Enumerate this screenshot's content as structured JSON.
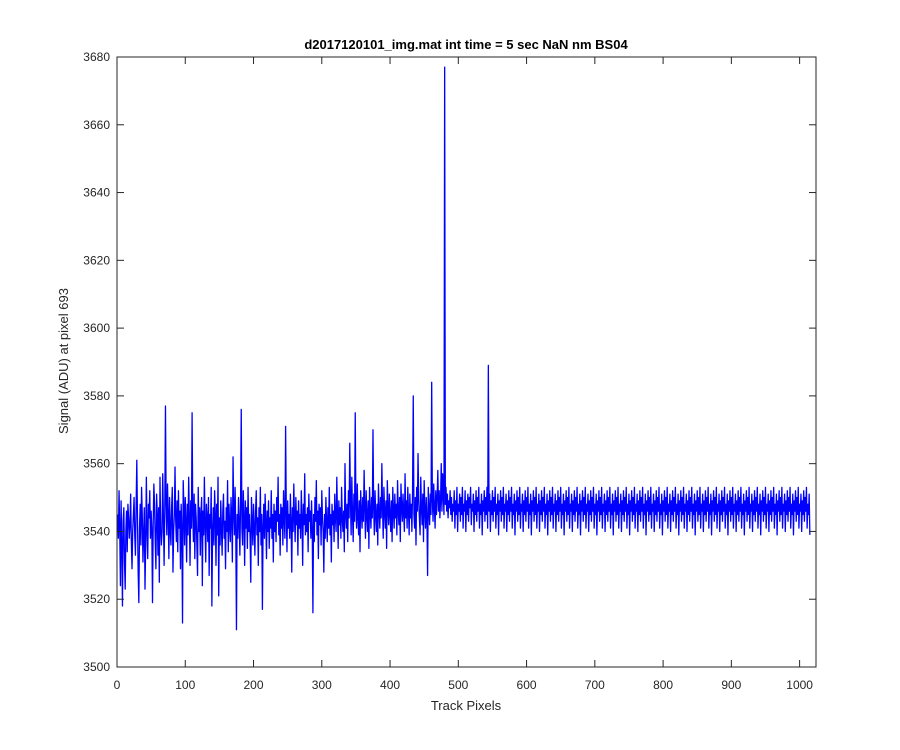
{
  "chart_data": {
    "type": "line",
    "title": "d2017120101_img.mat int time = 5 sec  NaN nm BS04",
    "xlabel": "Track Pixels",
    "ylabel": "Signal (ADU) at pixel 693",
    "xlim": [
      0,
      1024
    ],
    "ylim": [
      3500,
      3680
    ],
    "x_ticks": [
      0,
      100,
      200,
      300,
      400,
      500,
      600,
      700,
      800,
      900,
      1000
    ],
    "y_ticks": [
      3500,
      3520,
      3540,
      3560,
      3580,
      3600,
      3620,
      3640,
      3660,
      3680
    ],
    "grid": false,
    "legend": "none",
    "series": [
      {
        "color": "#0000ff",
        "x_start": 1,
        "x_step": 1,
        "y": [
          3545,
          3538,
          3552,
          3541,
          3524,
          3549,
          3536,
          3518,
          3543,
          3547,
          3531,
          3523,
          3540,
          3546,
          3534,
          3548,
          3544,
          3538,
          3542,
          3551,
          3537,
          3529,
          3540,
          3545,
          3550,
          3539,
          3533,
          3547,
          3561,
          3544,
          3528,
          3519,
          3541,
          3548,
          3536,
          3553,
          3545,
          3531,
          3539,
          3547,
          3523,
          3536,
          3556,
          3540,
          3532,
          3548,
          3544,
          3552,
          3538,
          3546,
          3541,
          3519,
          3542,
          3554,
          3548,
          3537,
          3529,
          3551,
          3545,
          3533,
          3547,
          3525,
          3556,
          3541,
          3536,
          3540,
          3557,
          3544,
          3530,
          3546,
          3577,
          3548,
          3539,
          3554,
          3545,
          3532,
          3550,
          3541,
          3536,
          3547,
          3553,
          3528,
          3540,
          3545,
          3559,
          3543,
          3537,
          3549,
          3534,
          3552,
          3541,
          3546,
          3529,
          3548,
          3540,
          3513,
          3555,
          3547,
          3536,
          3550,
          3543,
          3531,
          3548,
          3539,
          3556,
          3544,
          3530,
          3549,
          3541,
          3575,
          3545,
          3537,
          3551,
          3532,
          3548,
          3544,
          3536,
          3527,
          3553,
          3540,
          3547,
          3533,
          3545,
          3550,
          3524,
          3546,
          3539,
          3556,
          3542,
          3531,
          3548,
          3544,
          3537,
          3550,
          3527,
          3545,
          3541,
          3553,
          3518,
          3540,
          3547,
          3536,
          3552,
          3545,
          3530,
          3548,
          3539,
          3556,
          3521,
          3544,
          3536,
          3549,
          3541,
          3533,
          3546,
          3551,
          3538,
          3543,
          3529,
          3547,
          3540,
          3555,
          3534,
          3548,
          3542,
          3537,
          3550,
          3544,
          3531,
          3562,
          3546,
          3539,
          3553,
          3540,
          3511,
          3545,
          3538,
          3550,
          3543,
          3533,
          3548,
          3576,
          3541,
          3536,
          3552,
          3544,
          3530,
          3549,
          3541,
          3547,
          3535,
          3553,
          3540,
          3545,
          3538,
          3525,
          3550,
          3543,
          3536,
          3548,
          3541,
          3533,
          3546,
          3552,
          3539,
          3544,
          3530,
          3547,
          3540,
          3553,
          3536,
          3545,
          3517,
          3541,
          3548,
          3538,
          3551,
          3543,
          3532,
          3546,
          3540,
          3549,
          3535,
          3544,
          3541,
          3552,
          3538,
          3545,
          3531,
          3548,
          3540,
          3546,
          3537,
          3550,
          3543,
          3556,
          3539,
          3545,
          3533,
          3548,
          3541,
          3547,
          3536,
          3552,
          3544,
          3538,
          3571,
          3546,
          3534,
          3549,
          3541,
          3545,
          3538,
          3551,
          3543,
          3528,
          3547,
          3540,
          3554,
          3544,
          3537,
          3550,
          3542,
          3546,
          3533,
          3549,
          3541,
          3545,
          3538,
          3552,
          3544,
          3530,
          3548,
          3542,
          3557,
          3539,
          3545,
          3540,
          3547,
          3534,
          3551,
          3543,
          3546,
          3538,
          3549,
          3541,
          3516,
          3545,
          3537,
          3550,
          3543,
          3555,
          3539,
          3546,
          3532,
          3548,
          3542,
          3547,
          3536,
          3552,
          3544,
          3540,
          3528,
          3545,
          3538,
          3550,
          3543,
          3537,
          3547,
          3541,
          3553,
          3539,
          3545,
          3531,
          3548,
          3542,
          3546,
          3537,
          3551,
          3544,
          3540,
          3556,
          3545,
          3535,
          3549,
          3542,
          3547,
          3538,
          3553,
          3544,
          3540,
          3546,
          3534,
          3560,
          3545,
          3541,
          3548,
          3537,
          3552,
          3544,
          3566,
          3549,
          3539,
          3556,
          3545,
          3537,
          3551,
          3543,
          3575,
          3547,
          3541,
          3554,
          3544,
          3539,
          3549,
          3534,
          3552,
          3546,
          3541,
          3550,
          3543,
          3558,
          3547,
          3538,
          3552,
          3545,
          3540,
          3549,
          3535,
          3553,
          3546,
          3541,
          3550,
          3544,
          3570,
          3547,
          3539,
          3552,
          3545,
          3540,
          3548,
          3536,
          3554,
          3546,
          3541,
          3550,
          3544,
          3560,
          3547,
          3538,
          3553,
          3546,
          3541,
          3549,
          3535,
          3555,
          3547,
          3542,
          3551,
          3545,
          3540,
          3549,
          3537,
          3553,
          3546,
          3541,
          3551,
          3544,
          3548,
          3539,
          3555,
          3546,
          3542,
          3550,
          3537,
          3554,
          3547,
          3543,
          3551,
          3545,
          3540,
          3557,
          3544,
          3549,
          3541,
          3553,
          3546,
          3539,
          3551,
          3544,
          3548,
          3540,
          3552,
          3580,
          3545,
          3541,
          3550,
          3536,
          3553,
          3546,
          3563,
          3549,
          3544,
          3539,
          3556,
          3547,
          3542,
          3551,
          3537,
          3555,
          3546,
          3541,
          3550,
          3544,
          3527,
          3553,
          3547,
          3542,
          3551,
          3545,
          3584,
          3549,
          3543,
          3554,
          3547,
          3541,
          3552,
          3545,
          3550,
          3558,
          3546,
          3552,
          3544,
          3549,
          3560,
          3546,
          3557,
          3551,
          3545,
          3677,
          3548,
          3553,
          3546,
          3551,
          3544,
          3549,
          3547,
          3552,
          3545,
          3550,
          3543,
          3548,
          3546,
          3552,
          3541,
          3549,
          3545,
          3553,
          3540,
          3548,
          3546,
          3551,
          3543,
          3550,
          3545,
          3553,
          3541,
          3548,
          3546,
          3552,
          3540,
          3549,
          3545,
          3551,
          3543,
          3550,
          3547,
          3553,
          3542,
          3548,
          3546,
          3551,
          3540,
          3549,
          3545,
          3552,
          3543,
          3550,
          3546,
          3553,
          3541,
          3548,
          3545,
          3551,
          3539,
          3549,
          3546,
          3552,
          3543,
          3550,
          3545,
          3553,
          3541,
          3589,
          3546,
          3551,
          3540,
          3549,
          3545,
          3552,
          3543,
          3550,
          3546,
          3553,
          3541,
          3548,
          3545,
          3551,
          3539,
          3549,
          3546,
          3552,
          3543,
          3550,
          3545,
          3553,
          3541,
          3548,
          3546,
          3551,
          3540,
          3549,
          3545,
          3552,
          3543,
          3550,
          3546,
          3553,
          3541,
          3548,
          3545,
          3551,
          3539,
          3549,
          3546,
          3552,
          3543,
          3550,
          3545,
          3553,
          3541,
          3548,
          3546,
          3551,
          3540,
          3549,
          3545,
          3552,
          3543,
          3550,
          3546,
          3553,
          3541,
          3548,
          3545,
          3551,
          3539,
          3549,
          3546,
          3552,
          3543,
          3550,
          3545,
          3553,
          3541,
          3548,
          3546,
          3551,
          3540,
          3549,
          3545,
          3552,
          3543,
          3550,
          3546,
          3553,
          3541,
          3548,
          3545,
          3551,
          3539,
          3549,
          3546,
          3552,
          3543,
          3550,
          3545,
          3553,
          3541,
          3548,
          3546,
          3551,
          3540,
          3549,
          3545,
          3552,
          3543,
          3550,
          3546,
          3553,
          3541,
          3548,
          3545,
          3551,
          3539,
          3549,
          3546,
          3552,
          3543,
          3550,
          3545,
          3553,
          3541,
          3548,
          3546,
          3551,
          3540,
          3549,
          3545,
          3552,
          3543,
          3550,
          3546,
          3553,
          3541,
          3548,
          3545,
          3551,
          3539,
          3549,
          3546,
          3552,
          3543,
          3550,
          3545,
          3553,
          3541,
          3548,
          3546,
          3551,
          3540,
          3549,
          3545,
          3552,
          3543,
          3550,
          3546,
          3553,
          3541,
          3548,
          3545,
          3551,
          3539,
          3549,
          3546,
          3552,
          3543,
          3550,
          3545,
          3553,
          3541,
          3548,
          3546,
          3551,
          3540,
          3549,
          3545,
          3552,
          3543,
          3550,
          3546,
          3553,
          3541,
          3548,
          3545,
          3551,
          3539,
          3549,
          3546,
          3552,
          3543,
          3550,
          3545,
          3553,
          3541,
          3548,
          3546,
          3551,
          3540,
          3549,
          3545,
          3552,
          3543,
          3550,
          3546,
          3553,
          3541,
          3548,
          3545,
          3551,
          3539,
          3549,
          3546,
          3552,
          3543,
          3550,
          3545,
          3553,
          3541,
          3548,
          3546,
          3551,
          3540,
          3549,
          3545,
          3552,
          3543,
          3550,
          3546,
          3553,
          3541,
          3548,
          3545,
          3551,
          3539,
          3549,
          3546,
          3552,
          3543,
          3550,
          3545,
          3553,
          3541,
          3548,
          3546,
          3551,
          3540,
          3549,
          3545,
          3552,
          3543,
          3550,
          3546,
          3553,
          3541,
          3548,
          3545,
          3551,
          3539,
          3549,
          3546,
          3552,
          3543,
          3550,
          3545,
          3553,
          3541,
          3548,
          3546,
          3551,
          3540,
          3549,
          3545,
          3552,
          3543,
          3550,
          3546,
          3553,
          3541,
          3548,
          3545,
          3551,
          3539,
          3549,
          3546,
          3552,
          3543,
          3550,
          3545,
          3553,
          3541,
          3548,
          3546,
          3551,
          3540,
          3549,
          3545,
          3552,
          3543,
          3550,
          3546,
          3553,
          3541,
          3548,
          3545,
          3551,
          3539,
          3549,
          3546,
          3552,
          3543,
          3550,
          3545,
          3553,
          3541,
          3548,
          3546,
          3551,
          3540,
          3549,
          3545,
          3552,
          3543,
          3550,
          3546,
          3553,
          3541,
          3548,
          3545,
          3551,
          3539,
          3549,
          3546,
          3552,
          3543,
          3550,
          3545,
          3553,
          3541,
          3548,
          3546,
          3551,
          3540,
          3549,
          3545,
          3552,
          3543,
          3550,
          3546,
          3553,
          3541,
          3548,
          3545,
          3551,
          3539,
          3549,
          3546,
          3552,
          3543,
          3550,
          3545,
          3553,
          3541,
          3548,
          3546,
          3551,
          3540,
          3549,
          3545,
          3552,
          3543,
          3550,
          3546,
          3553,
          3541,
          3548,
          3545,
          3551,
          3539,
          3549,
          3546,
          3552,
          3543,
          3550,
          3545,
          3553,
          3541,
          3548,
          3546,
          3551,
          3540,
          3549,
          3545,
          3552,
          3543,
          3550,
          3546,
          3553,
          3541,
          3548,
          3545,
          3551,
          3539,
          3549,
          3546,
          3552,
          3543,
          3550,
          3545,
          3553,
          3541,
          3548,
          3546,
          3551,
          3540,
          3549,
          3545,
          3552,
          3543,
          3550,
          3546,
          3553,
          3541,
          3548,
          3545,
          3551,
          3539,
          3549,
          3546,
          3552,
          3543,
          3550,
          3545,
          3553,
          3541,
          3548,
          3546,
          3551,
          3540,
          3549,
          3545,
          3552,
          3543,
          3550,
          3546,
          3553,
          3541,
          3548,
          3545,
          3551,
          3539,
          3549,
          3546,
          3552,
          3543,
          3550,
          3545,
          3553,
          3541,
          3548,
          3546,
          3551,
          3540,
          3549,
          3545,
          3552,
          3543,
          3550,
          3546,
          3553,
          3541,
          3548,
          3545,
          3551,
          3539
        ]
      }
    ]
  }
}
